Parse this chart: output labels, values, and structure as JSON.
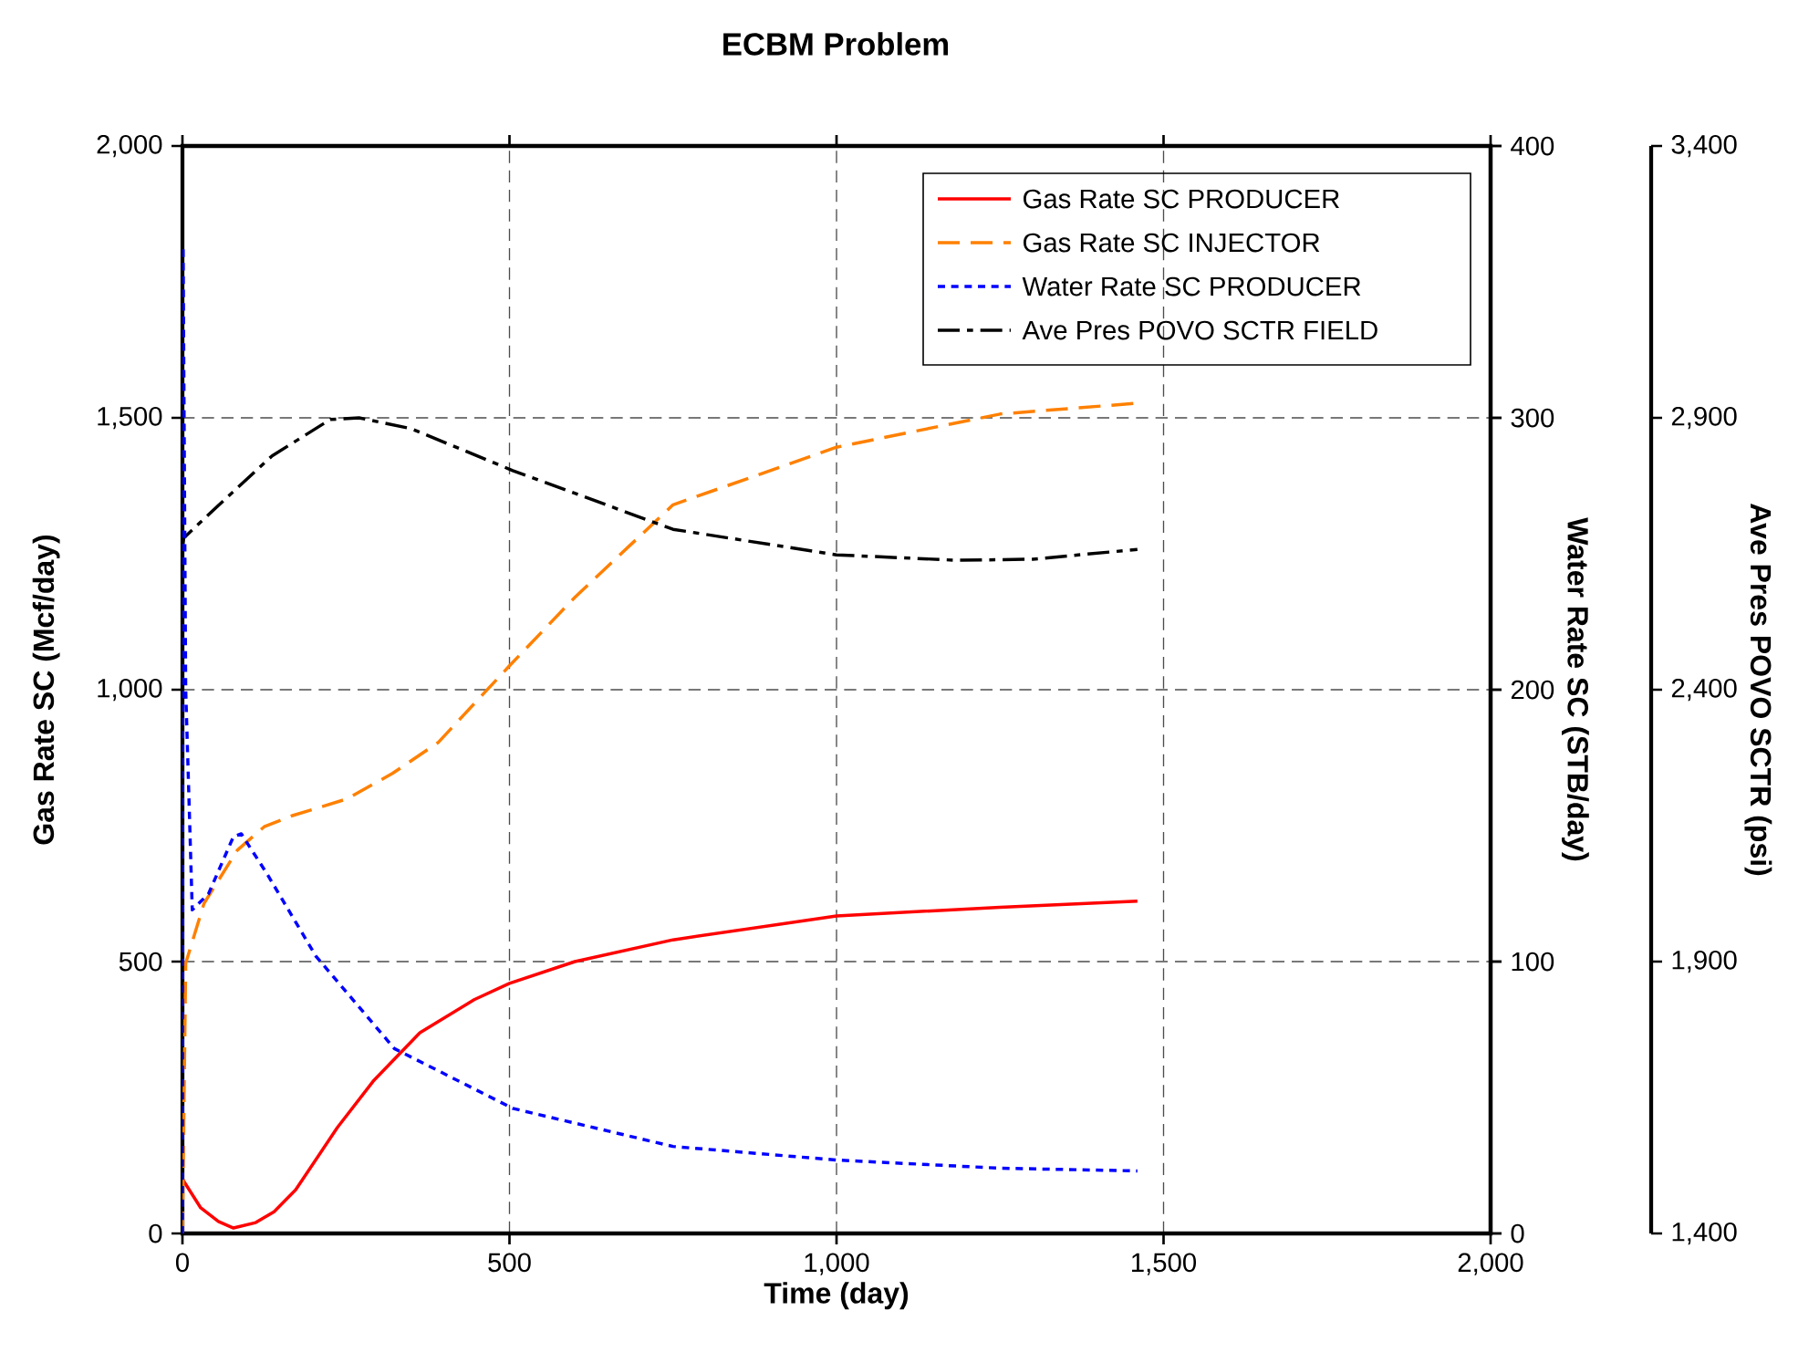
{
  "chart_data": {
    "type": "line",
    "title": "ECBM Problem",
    "xlabel": "Time (day)",
    "ylabel": "Gas Rate SC (Mcf/day)",
    "y2label": "Water Rate SC (STB/day)",
    "y3label": "Ave Pres POVO SCTR (psi)",
    "xlim": [
      0,
      2000
    ],
    "xticks": [
      0,
      500,
      {
        "value": 1000,
        "label": "1,000"
      },
      {
        "value": 1500,
        "label": "1,500"
      },
      {
        "value": 2000,
        "label": "2,000"
      }
    ],
    "ylim": [
      0,
      2000
    ],
    "yticks": [
      0,
      500,
      {
        "value": 1000,
        "label": "1,000"
      },
      {
        "value": 1500,
        "label": "1,500"
      },
      {
        "value": 2000,
        "label": "2,000"
      }
    ],
    "y2lim": [
      0,
      400
    ],
    "y2ticks": [
      0,
      100,
      200,
      300,
      400
    ],
    "y3lim": [
      1400,
      3400
    ],
    "y3ticks": [
      {
        "value": 1400,
        "label": "1,400"
      },
      {
        "value": 1900,
        "label": "1,900"
      },
      {
        "value": 2400,
        "label": "2,400"
      },
      {
        "value": 2900,
        "label": "2,900"
      },
      {
        "value": 3400,
        "label": "3,400"
      }
    ],
    "grid": true,
    "legend": "top right",
    "series": [
      {
        "name": "Gas Rate SC PRODUCER",
        "color": "#ff0000",
        "line_style": "solid",
        "x": [
          0,
          28,
          55,
          78,
          112,
          140,
          173,
          237,
          293,
          363,
          446,
          500,
          600,
          750,
          1000,
          1250,
          1460
        ],
        "values": [
          100,
          47,
          22,
          10,
          20,
          40,
          80,
          195,
          282,
          369,
          430,
          460,
          500,
          540,
          584,
          600,
          611
        ]
      },
      {
        "name": "Gas Rate SC INJECTOR",
        "color": "#ff8000",
        "line_style": "dashed",
        "x": [
          0,
          5,
          33,
          84,
          125,
          167,
          251,
          321,
          391,
          500,
          600,
          750,
          1000,
          1250,
          1460
        ],
        "values": [
          0,
          497,
          607,
          705,
          748,
          768,
          799,
          846,
          903,
          1044,
          1170,
          1340,
          1446,
          1507,
          1527
        ]
      },
      {
        "name": "Water Rate SC PRODUCER",
        "color": "#0000ff",
        "line_style": "dotted",
        "axis": "y2",
        "x": [
          0,
          1,
          5,
          15,
          40,
          78,
          90,
          130,
          204,
          324,
          505,
          750,
          1000,
          1250,
          1460
        ],
        "values": [
          0,
          363,
          200,
          119,
          125,
          146,
          147,
          132,
          102,
          68,
          46,
          32,
          27,
          24,
          23
        ]
      },
      {
        "name": "Ave Pres POVO SCTR FIELD",
        "color": "#000000",
        "line_style": "dashdot",
        "axis": "y3",
        "x": [
          0,
          2,
          55,
          137,
          226,
          270,
          350,
          505,
          750,
          1000,
          1185,
          1300,
          1460
        ],
        "values": [
          2660,
          2679,
          2739,
          2830,
          2897,
          2900,
          2880,
          2803,
          2695,
          2648,
          2638,
          2640,
          2658
        ]
      }
    ]
  }
}
